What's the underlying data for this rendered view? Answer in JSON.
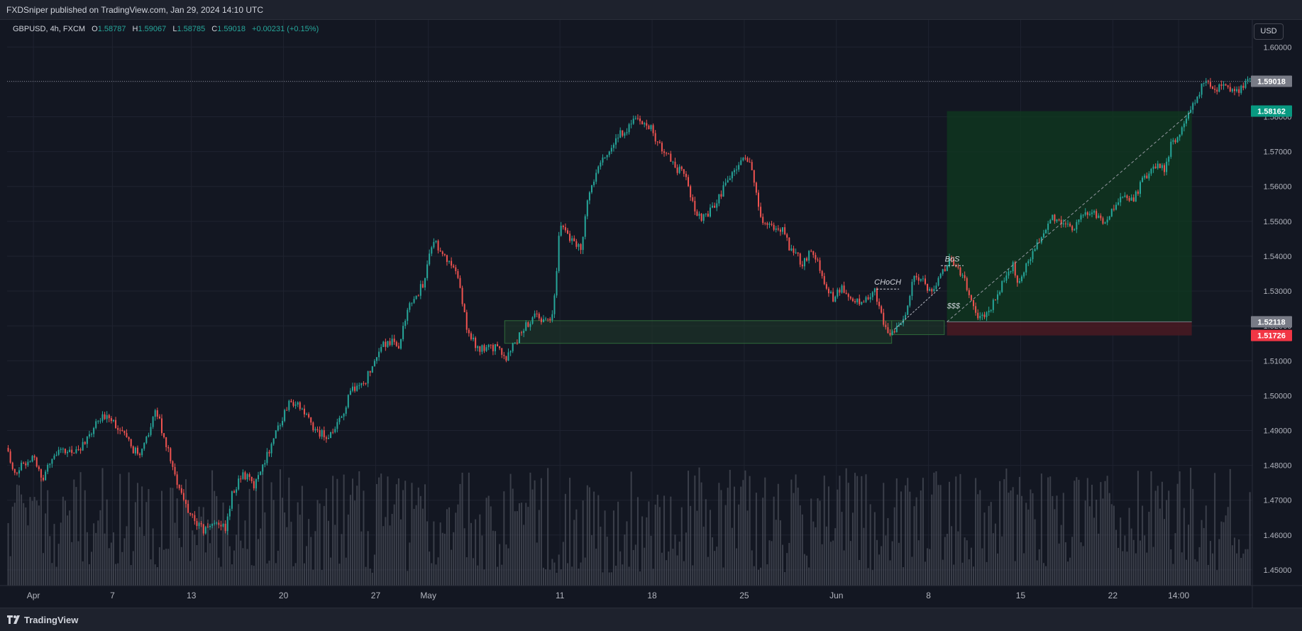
{
  "header": {
    "publisher_line": "FXDSniper published on TradingView.com, Jan 29, 2024 14:10 UTC"
  },
  "legend": {
    "symbol": "GBPUSD, 4h, FXCM",
    "open_label": "O",
    "open": "1.58787",
    "high_label": "H",
    "high": "1.59067",
    "low_label": "L",
    "low": "1.58785",
    "close_label": "C",
    "close": "1.59018",
    "change": "+0.00231 (+0.15%)"
  },
  "currency_button": "USD",
  "footer": {
    "brand": "TradingView"
  },
  "colors": {
    "background": "#131722",
    "grid": "#1f2330",
    "up": "#26a69a",
    "down": "#ef5350",
    "volume": "#5d606b",
    "profit_zone": "#0f3a1f",
    "loss_zone": "#4a1a22",
    "demand_zone": "#1f3b2a"
  },
  "chart_data": {
    "type": "candlestick",
    "symbol": "GBPUSD",
    "timeframe": "4h",
    "ylim": [
      1.4455,
      1.6078
    ],
    "y_ticks": [
      "1.60000",
      "1.59000",
      "1.58000",
      "1.57000",
      "1.56000",
      "1.55000",
      "1.54000",
      "1.53000",
      "1.52000",
      "1.51000",
      "1.50000",
      "1.49000",
      "1.48000",
      "1.47000",
      "1.46000",
      "1.45000"
    ],
    "x_ticks": [
      {
        "label": "Apr",
        "day": 0
      },
      {
        "label": "7",
        "day": 6
      },
      {
        "label": "13",
        "day": 12
      },
      {
        "label": "20",
        "day": 19
      },
      {
        "label": "27",
        "day": 26
      },
      {
        "label": "May",
        "day": 30
      },
      {
        "label": "11",
        "day": 40
      },
      {
        "label": "18",
        "day": 47
      },
      {
        "label": "25",
        "day": 54
      },
      {
        "label": "Jun",
        "day": 61
      },
      {
        "label": "8",
        "day": 68
      },
      {
        "label": "15",
        "day": 75
      },
      {
        "label": "22",
        "day": 82
      },
      {
        "label": "14:00",
        "day": 87
      }
    ],
    "xlim_days": [
      -2.0,
      92.6
    ],
    "price_path": [
      [
        -2.0,
        1.485
      ],
      [
        -1.3,
        1.478
      ],
      [
        0.0,
        1.483
      ],
      [
        0.8,
        1.476
      ],
      [
        1.5,
        1.483
      ],
      [
        3.0,
        1.484
      ],
      [
        4.0,
        1.486
      ],
      [
        4.9,
        1.492
      ],
      [
        5.8,
        1.495
      ],
      [
        7.0,
        1.488
      ],
      [
        8.2,
        1.482
      ],
      [
        8.7,
        1.488
      ],
      [
        9.4,
        1.496
      ],
      [
        10.5,
        1.482
      ],
      [
        11.0,
        1.474
      ],
      [
        12.0,
        1.466
      ],
      [
        13.0,
        1.461
      ],
      [
        13.8,
        1.464
      ],
      [
        14.7,
        1.462
      ],
      [
        15.2,
        1.472
      ],
      [
        16.0,
        1.478
      ],
      [
        16.8,
        1.474
      ],
      [
        17.7,
        1.482
      ],
      [
        18.8,
        1.492
      ],
      [
        19.6,
        1.499
      ],
      [
        20.5,
        1.496
      ],
      [
        21.5,
        1.49
      ],
      [
        22.5,
        1.488
      ],
      [
        23.3,
        1.492
      ],
      [
        24.3,
        1.502
      ],
      [
        25.3,
        1.504
      ],
      [
        26.0,
        1.511
      ],
      [
        27.0,
        1.516
      ],
      [
        27.8,
        1.514
      ],
      [
        28.7,
        1.526
      ],
      [
        29.7,
        1.532
      ],
      [
        30.5,
        1.545
      ],
      [
        31.3,
        1.54
      ],
      [
        32.3,
        1.534
      ],
      [
        33.1,
        1.518
      ],
      [
        34.0,
        1.513
      ],
      [
        35.0,
        1.514
      ],
      [
        36.0,
        1.511
      ],
      [
        37.3,
        1.519
      ],
      [
        38.3,
        1.523
      ],
      [
        39.1,
        1.521
      ],
      [
        39.6,
        1.525
      ],
      [
        40.1,
        1.55
      ],
      [
        40.9,
        1.545
      ],
      [
        41.7,
        1.542
      ],
      [
        42.2,
        1.558
      ],
      [
        42.8,
        1.564
      ],
      [
        43.7,
        1.57
      ],
      [
        44.7,
        1.575
      ],
      [
        45.7,
        1.579
      ],
      [
        46.9,
        1.577
      ],
      [
        47.5,
        1.573
      ],
      [
        48.2,
        1.569
      ],
      [
        48.8,
        1.565
      ],
      [
        49.6,
        1.564
      ],
      [
        50.1,
        1.555
      ],
      [
        50.8,
        1.551
      ],
      [
        51.6,
        1.553
      ],
      [
        52.3,
        1.558
      ],
      [
        53.0,
        1.562
      ],
      [
        53.8,
        1.568
      ],
      [
        54.6,
        1.567
      ],
      [
        55.3,
        1.551
      ],
      [
        56.0,
        1.549
      ],
      [
        56.9,
        1.548
      ],
      [
        57.6,
        1.542
      ],
      [
        58.5,
        1.538
      ],
      [
        59.3,
        1.542
      ],
      [
        60.0,
        1.534
      ],
      [
        60.8,
        1.528
      ],
      [
        61.6,
        1.531
      ],
      [
        62.4,
        1.528
      ],
      [
        63.2,
        1.527
      ],
      [
        64.0,
        1.53
      ],
      [
        64.6,
        1.521
      ],
      [
        65.3,
        1.518
      ],
      [
        66.3,
        1.523
      ],
      [
        66.9,
        1.533
      ],
      [
        67.6,
        1.535
      ],
      [
        68.2,
        1.529
      ],
      [
        68.8,
        1.533
      ],
      [
        69.6,
        1.539
      ],
      [
        70.3,
        1.537
      ],
      [
        71.0,
        1.531
      ],
      [
        71.6,
        1.524
      ],
      [
        72.2,
        1.522
      ],
      [
        72.9,
        1.526
      ],
      [
        73.7,
        1.532
      ],
      [
        74.5,
        1.537
      ],
      [
        75.0,
        1.532
      ],
      [
        75.7,
        1.539
      ],
      [
        76.5,
        1.544
      ],
      [
        77.3,
        1.551
      ],
      [
        78.2,
        1.55
      ],
      [
        79.0,
        1.547
      ],
      [
        79.8,
        1.552
      ],
      [
        80.6,
        1.553
      ],
      [
        81.4,
        1.55
      ],
      [
        82.2,
        1.554
      ],
      [
        82.9,
        1.558
      ],
      [
        83.6,
        1.556
      ],
      [
        84.4,
        1.562
      ],
      [
        85.2,
        1.566
      ],
      [
        86.0,
        1.565
      ],
      [
        86.5,
        1.572
      ],
      [
        87.2,
        1.576
      ],
      [
        87.8,
        1.582
      ],
      [
        88.3,
        1.584
      ],
      [
        89.0,
        1.59
      ],
      [
        89.7,
        1.588
      ],
      [
        90.5,
        1.589
      ],
      [
        91.2,
        1.588
      ],
      [
        91.7,
        1.587
      ],
      [
        92.4,
        1.5902
      ]
    ],
    "current_price": {
      "label": "1.59018",
      "value": 1.59018,
      "color": "#787b86"
    },
    "price_tags": [
      {
        "label": "1.58162",
        "value": 1.58162,
        "color": "#089981"
      },
      {
        "label": "1.52118",
        "value": 1.52118,
        "color": "#787b86"
      },
      {
        "label": "1.51726",
        "value": 1.51726,
        "color": "#f23645"
      }
    ],
    "position_tool": {
      "entry": 1.52118,
      "target": 1.58162,
      "stop": 1.51726,
      "day_start": 69.4,
      "day_end": 88.0
    },
    "zones": [
      {
        "day_start": 35.8,
        "day_end": 65.2,
        "top": 1.5215,
        "bottom": 1.515
      },
      {
        "day_start": 65.2,
        "day_end": 69.2,
        "top": 1.5215,
        "bottom": 1.5175
      }
    ],
    "annotations": [
      {
        "text": "CHoCH",
        "day": 64.9,
        "price": 1.5318
      },
      {
        "text": "BoS",
        "day": 69.8,
        "price": 1.5385
      },
      {
        "text": "$$$",
        "day": 69.9,
        "price": 1.525
      }
    ],
    "volume_scale_max": 100
  }
}
